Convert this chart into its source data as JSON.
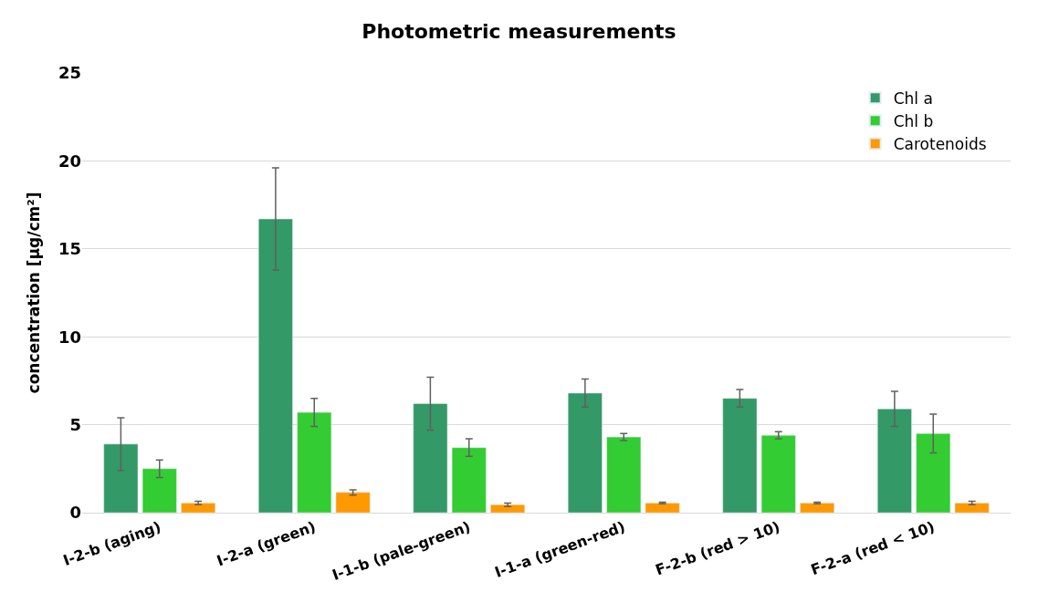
{
  "chart_data": {
    "type": "bar",
    "title": "Photometric measurements",
    "ylabel": "concentration [µg/cm²]",
    "categories": [
      "I-2-b (aging)",
      "I-2-a (green)",
      "I-1-b (pale-green)",
      "I-1-a (green-red)",
      "F-2-b (red > 10)",
      "F-2-a (red < 10)"
    ],
    "series": [
      {
        "name": "Chl a",
        "color": "#339966",
        "values": [
          3.9,
          16.7,
          6.2,
          6.8,
          6.5,
          5.9
        ],
        "errors": [
          1.5,
          2.9,
          1.5,
          0.8,
          0.5,
          1.0
        ]
      },
      {
        "name": "Chl b",
        "color": "#33cc33",
        "values": [
          2.5,
          5.7,
          3.7,
          4.3,
          4.4,
          4.5
        ],
        "errors": [
          0.5,
          0.8,
          0.5,
          0.2,
          0.2,
          1.1
        ]
      },
      {
        "name": "Carotenoids",
        "color": "#ff9900",
        "values": [
          0.55,
          1.15,
          0.45,
          0.55,
          0.55,
          0.55
        ],
        "errors": [
          0.1,
          0.15,
          0.1,
          0.05,
          0.05,
          0.1
        ]
      }
    ],
    "ylim": [
      0,
      25
    ],
    "yticks": [
      0,
      5,
      10,
      15,
      20,
      25
    ],
    "grid": "y",
    "legend": "top right"
  }
}
